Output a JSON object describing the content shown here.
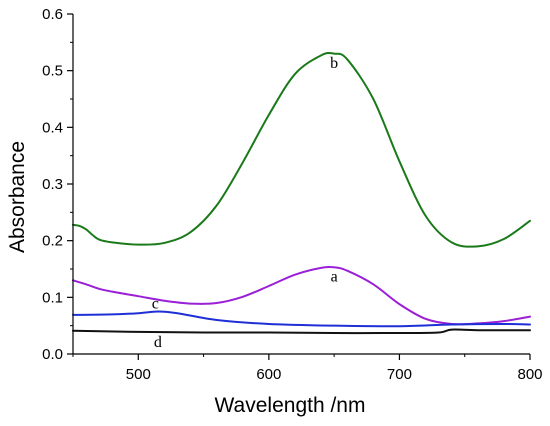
{
  "chart_data": {
    "type": "line",
    "title": "",
    "xlabel": "Wavelength /nm",
    "ylabel": "Absorbance",
    "xlim": [
      450,
      800
    ],
    "ylim": [
      0.0,
      0.6
    ],
    "x_ticks": [
      500,
      600,
      700,
      800
    ],
    "x_tick_labels": [
      "500",
      "600",
      "700",
      "800"
    ],
    "y_ticks": [
      0.0,
      0.1,
      0.2,
      0.3,
      0.4,
      0.5,
      0.6
    ],
    "y_tick_labels": [
      "0.0",
      "0.1",
      "0.2",
      "0.3",
      "0.4",
      "0.5",
      "0.6"
    ],
    "grid": false,
    "legend": "none",
    "series": [
      {
        "label": "a",
        "color": "#9b1fd6",
        "x": [
          450,
          460,
          470,
          480,
          500,
          520,
          540,
          560,
          580,
          600,
          620,
          640,
          650,
          660,
          680,
          700,
          720,
          740,
          760,
          780,
          800
        ],
        "y": [
          0.13,
          0.123,
          0.115,
          0.11,
          0.102,
          0.094,
          0.089,
          0.09,
          0.101,
          0.12,
          0.14,
          0.152,
          0.153,
          0.147,
          0.123,
          0.088,
          0.062,
          0.053,
          0.054,
          0.058,
          0.066
        ]
      },
      {
        "label": "b",
        "color": "#1a7a1a",
        "x": [
          450,
          455,
          460,
          465,
          470,
          480,
          500,
          520,
          540,
          560,
          580,
          600,
          620,
          640,
          650,
          660,
          680,
          700,
          720,
          740,
          760,
          780,
          800
        ],
        "y": [
          0.228,
          0.226,
          0.22,
          0.21,
          0.202,
          0.197,
          0.193,
          0.196,
          0.215,
          0.262,
          0.338,
          0.422,
          0.494,
          0.527,
          0.53,
          0.52,
          0.45,
          0.34,
          0.244,
          0.197,
          0.19,
          0.203,
          0.235
        ]
      },
      {
        "label": "c",
        "color": "#1f2fd6",
        "x": [
          450,
          480,
          500,
          515,
          530,
          560,
          600,
          650,
          700,
          740,
          780,
          800
        ],
        "y": [
          0.069,
          0.07,
          0.072,
          0.075,
          0.072,
          0.06,
          0.053,
          0.05,
          0.049,
          0.052,
          0.053,
          0.052
        ]
      },
      {
        "label": "d",
        "color": "#111111",
        "x": [
          450,
          500,
          550,
          600,
          650,
          700,
          730,
          740,
          760,
          800
        ],
        "y": [
          0.041,
          0.039,
          0.038,
          0.038,
          0.037,
          0.037,
          0.038,
          0.043,
          0.042,
          0.042
        ]
      }
    ],
    "curve_labels": [
      {
        "text": "a",
        "x": 650,
        "y": 0.128
      },
      {
        "text": "b",
        "x": 650,
        "y": 0.505
      },
      {
        "text": "c",
        "x": 513,
        "y": 0.08
      },
      {
        "text": "d",
        "x": 515,
        "y": 0.012
      }
    ]
  }
}
